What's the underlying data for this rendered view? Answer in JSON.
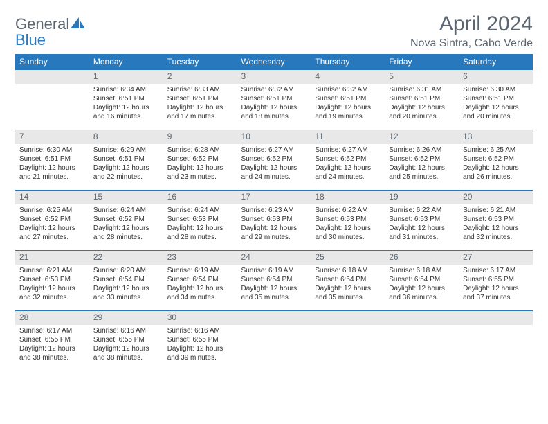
{
  "logo": {
    "text1": "General",
    "text2": "Blue"
  },
  "title": "April 2024",
  "location": "Nova Sintra, Cabo Verde",
  "colors": {
    "header_bg": "#2878bd",
    "header_text": "#ffffff",
    "daynum_bg": "#e8e8e8",
    "text_gray": "#5b6670",
    "border": "#2878bd"
  },
  "day_labels": [
    "Sunday",
    "Monday",
    "Tuesday",
    "Wednesday",
    "Thursday",
    "Friday",
    "Saturday"
  ],
  "weeks": [
    [
      {
        "n": "",
        "lines": []
      },
      {
        "n": "1",
        "lines": [
          "Sunrise: 6:34 AM",
          "Sunset: 6:51 PM",
          "Daylight: 12 hours",
          "and 16 minutes."
        ]
      },
      {
        "n": "2",
        "lines": [
          "Sunrise: 6:33 AM",
          "Sunset: 6:51 PM",
          "Daylight: 12 hours",
          "and 17 minutes."
        ]
      },
      {
        "n": "3",
        "lines": [
          "Sunrise: 6:32 AM",
          "Sunset: 6:51 PM",
          "Daylight: 12 hours",
          "and 18 minutes."
        ]
      },
      {
        "n": "4",
        "lines": [
          "Sunrise: 6:32 AM",
          "Sunset: 6:51 PM",
          "Daylight: 12 hours",
          "and 19 minutes."
        ]
      },
      {
        "n": "5",
        "lines": [
          "Sunrise: 6:31 AM",
          "Sunset: 6:51 PM",
          "Daylight: 12 hours",
          "and 20 minutes."
        ]
      },
      {
        "n": "6",
        "lines": [
          "Sunrise: 6:30 AM",
          "Sunset: 6:51 PM",
          "Daylight: 12 hours",
          "and 20 minutes."
        ]
      }
    ],
    [
      {
        "n": "7",
        "lines": [
          "Sunrise: 6:30 AM",
          "Sunset: 6:51 PM",
          "Daylight: 12 hours",
          "and 21 minutes."
        ]
      },
      {
        "n": "8",
        "lines": [
          "Sunrise: 6:29 AM",
          "Sunset: 6:51 PM",
          "Daylight: 12 hours",
          "and 22 minutes."
        ]
      },
      {
        "n": "9",
        "lines": [
          "Sunrise: 6:28 AM",
          "Sunset: 6:52 PM",
          "Daylight: 12 hours",
          "and 23 minutes."
        ]
      },
      {
        "n": "10",
        "lines": [
          "Sunrise: 6:27 AM",
          "Sunset: 6:52 PM",
          "Daylight: 12 hours",
          "and 24 minutes."
        ]
      },
      {
        "n": "11",
        "lines": [
          "Sunrise: 6:27 AM",
          "Sunset: 6:52 PM",
          "Daylight: 12 hours",
          "and 24 minutes."
        ]
      },
      {
        "n": "12",
        "lines": [
          "Sunrise: 6:26 AM",
          "Sunset: 6:52 PM",
          "Daylight: 12 hours",
          "and 25 minutes."
        ]
      },
      {
        "n": "13",
        "lines": [
          "Sunrise: 6:25 AM",
          "Sunset: 6:52 PM",
          "Daylight: 12 hours",
          "and 26 minutes."
        ]
      }
    ],
    [
      {
        "n": "14",
        "lines": [
          "Sunrise: 6:25 AM",
          "Sunset: 6:52 PM",
          "Daylight: 12 hours",
          "and 27 minutes."
        ]
      },
      {
        "n": "15",
        "lines": [
          "Sunrise: 6:24 AM",
          "Sunset: 6:52 PM",
          "Daylight: 12 hours",
          "and 28 minutes."
        ]
      },
      {
        "n": "16",
        "lines": [
          "Sunrise: 6:24 AM",
          "Sunset: 6:53 PM",
          "Daylight: 12 hours",
          "and 28 minutes."
        ]
      },
      {
        "n": "17",
        "lines": [
          "Sunrise: 6:23 AM",
          "Sunset: 6:53 PM",
          "Daylight: 12 hours",
          "and 29 minutes."
        ]
      },
      {
        "n": "18",
        "lines": [
          "Sunrise: 6:22 AM",
          "Sunset: 6:53 PM",
          "Daylight: 12 hours",
          "and 30 minutes."
        ]
      },
      {
        "n": "19",
        "lines": [
          "Sunrise: 6:22 AM",
          "Sunset: 6:53 PM",
          "Daylight: 12 hours",
          "and 31 minutes."
        ]
      },
      {
        "n": "20",
        "lines": [
          "Sunrise: 6:21 AM",
          "Sunset: 6:53 PM",
          "Daylight: 12 hours",
          "and 32 minutes."
        ]
      }
    ],
    [
      {
        "n": "21",
        "lines": [
          "Sunrise: 6:21 AM",
          "Sunset: 6:53 PM",
          "Daylight: 12 hours",
          "and 32 minutes."
        ]
      },
      {
        "n": "22",
        "lines": [
          "Sunrise: 6:20 AM",
          "Sunset: 6:54 PM",
          "Daylight: 12 hours",
          "and 33 minutes."
        ]
      },
      {
        "n": "23",
        "lines": [
          "Sunrise: 6:19 AM",
          "Sunset: 6:54 PM",
          "Daylight: 12 hours",
          "and 34 minutes."
        ]
      },
      {
        "n": "24",
        "lines": [
          "Sunrise: 6:19 AM",
          "Sunset: 6:54 PM",
          "Daylight: 12 hours",
          "and 35 minutes."
        ]
      },
      {
        "n": "25",
        "lines": [
          "Sunrise: 6:18 AM",
          "Sunset: 6:54 PM",
          "Daylight: 12 hours",
          "and 35 minutes."
        ]
      },
      {
        "n": "26",
        "lines": [
          "Sunrise: 6:18 AM",
          "Sunset: 6:54 PM",
          "Daylight: 12 hours",
          "and 36 minutes."
        ]
      },
      {
        "n": "27",
        "lines": [
          "Sunrise: 6:17 AM",
          "Sunset: 6:55 PM",
          "Daylight: 12 hours",
          "and 37 minutes."
        ]
      }
    ],
    [
      {
        "n": "28",
        "lines": [
          "Sunrise: 6:17 AM",
          "Sunset: 6:55 PM",
          "Daylight: 12 hours",
          "and 38 minutes."
        ]
      },
      {
        "n": "29",
        "lines": [
          "Sunrise: 6:16 AM",
          "Sunset: 6:55 PM",
          "Daylight: 12 hours",
          "and 38 minutes."
        ]
      },
      {
        "n": "30",
        "lines": [
          "Sunrise: 6:16 AM",
          "Sunset: 6:55 PM",
          "Daylight: 12 hours",
          "and 39 minutes."
        ]
      },
      {
        "n": "",
        "lines": []
      },
      {
        "n": "",
        "lines": []
      },
      {
        "n": "",
        "lines": []
      },
      {
        "n": "",
        "lines": []
      }
    ]
  ]
}
